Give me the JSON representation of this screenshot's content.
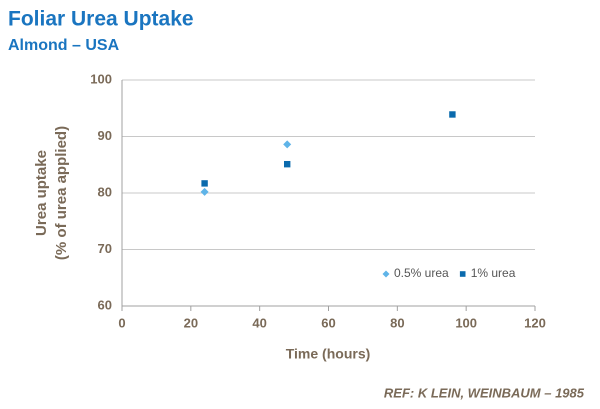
{
  "chart_data": {
    "type": "scatter",
    "title": "Foliar Urea Uptake",
    "subtitle": "Almond – USA",
    "xlabel": "Time (hours)",
    "ylabel": [
      "Urea uptake",
      "(% of urea applied)"
    ],
    "annotation": "REF:  K LEIN, WEINBAUM – 1985",
    "series": [
      {
        "name": "0.5% urea",
        "color": "#5fb4e8",
        "marker": "diamond",
        "x": [
          24,
          48
        ],
        "values": [
          80.2,
          88.6
        ]
      },
      {
        "name": "1% urea",
        "color": "#0a6aad",
        "marker": "square",
        "x": [
          24,
          48,
          96
        ],
        "values": [
          81.7,
          85.1,
          93.9
        ]
      }
    ],
    "xlim": [
      0,
      120
    ],
    "xticks": [
      0,
      20,
      40,
      60,
      80,
      100,
      120
    ],
    "ylim": [
      60,
      100
    ],
    "yticks": [
      60,
      70,
      80,
      90,
      100
    ],
    "grid": true,
    "legend": "lower-right"
  }
}
